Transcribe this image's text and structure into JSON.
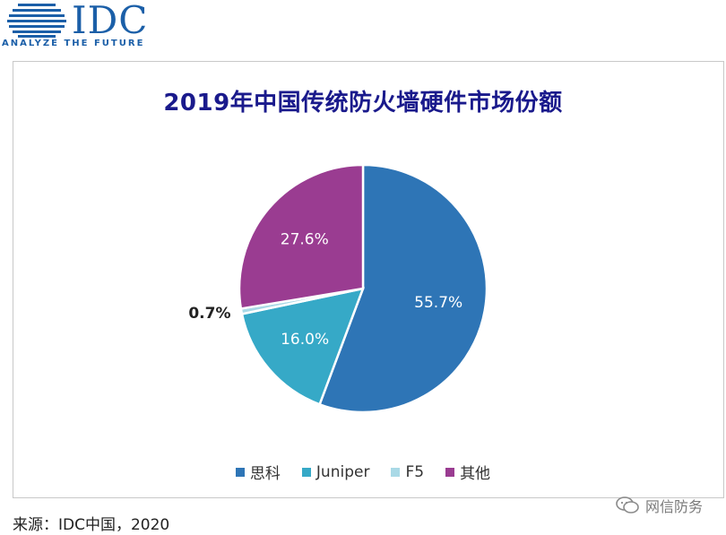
{
  "brand": {
    "name": "IDC",
    "tagline": "ANALYZE THE FUTURE",
    "color": "#1b5fa8"
  },
  "source_text": "来源：IDC中国，2020",
  "watermark_text": "网信防务",
  "chart_data": {
    "type": "pie",
    "title": "2019年中国传统防火墙硬件市场份额",
    "series": [
      {
        "name": "思科",
        "value": 55.7,
        "label": "55.7%",
        "color": "#2e75b6"
      },
      {
        "name": "Juniper",
        "value": 16.0,
        "label": "16.0%",
        "color": "#36a9c7"
      },
      {
        "name": "F5",
        "value": 0.7,
        "label": "0.7%",
        "color": "#a9d9e6"
      },
      {
        "name": "其他",
        "value": 27.6,
        "label": "27.6%",
        "color": "#9a3c91"
      }
    ],
    "legend_position": "bottom"
  }
}
